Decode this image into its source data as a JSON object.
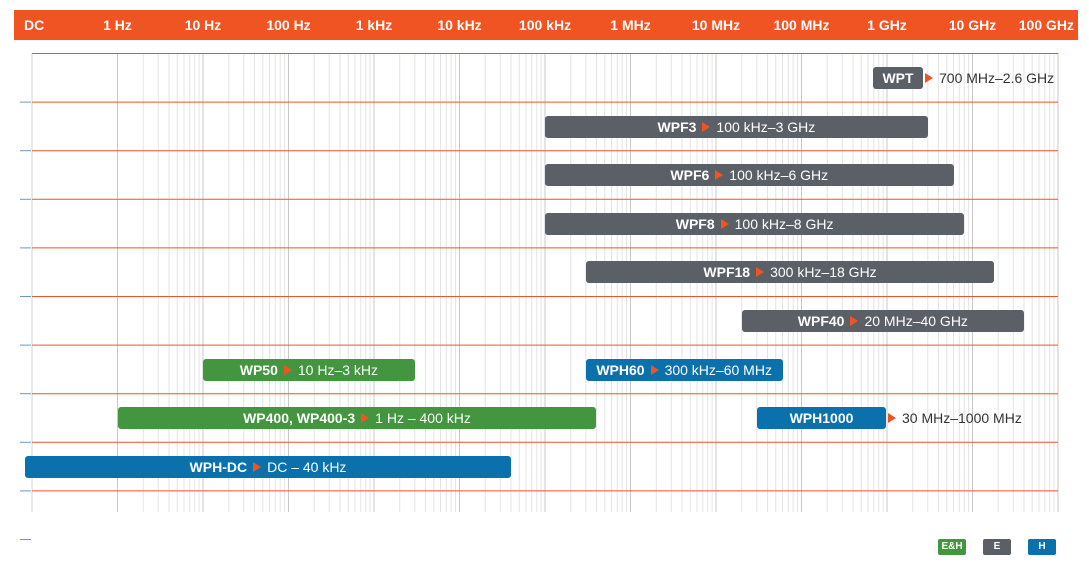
{
  "chart_data": {
    "type": "bar",
    "orientation": "horizontal",
    "x_scale": "log",
    "x_ticks": [
      "DC",
      "1 Hz",
      "10 Hz",
      "100 Hz",
      "1 kHz",
      "10 kHz",
      "100 kHz",
      "1 MHz",
      "10 MHz",
      "100 MHz",
      "1 GHz",
      "10 GHz",
      "100 GHz"
    ],
    "grid": true,
    "legend_position": "bottom-right",
    "colors": {
      "header": "#f05423",
      "accent": "#f05423",
      "gray": "#5b5f66",
      "green": "#43963f",
      "blue": "#0a71ad"
    },
    "bars": [
      {
        "name": "WPT",
        "range_label": "700 MHz–2.6 GHz",
        "x_start": "700 MHz",
        "x_end": "2.6 GHz",
        "color": "gray",
        "label_outside": true
      },
      {
        "name": "WPF3",
        "range_label": "100 kHz–3 GHz",
        "x_start": "100 kHz",
        "x_end": "3 GHz",
        "color": "gray"
      },
      {
        "name": "WPF6",
        "range_label": "100 kHz–6 GHz",
        "x_start": "100 kHz",
        "x_end": "6 GHz",
        "color": "gray"
      },
      {
        "name": "WPF8",
        "range_label": "100 kHz–8 GHz",
        "x_start": "100 kHz",
        "x_end": "8 GHz",
        "color": "gray"
      },
      {
        "name": "WPF18",
        "range_label": "300 kHz–18 GHz",
        "x_start": "300 kHz",
        "x_end": "18 GHz",
        "color": "gray"
      },
      {
        "name": "WPF40",
        "range_label": "20 MHz–40 GHz",
        "x_start": "20 MHz",
        "x_end": "40 GHz",
        "color": "gray"
      },
      {
        "name": "WP50",
        "range_label": "10 Hz–3 kHz",
        "x_start": "10 Hz",
        "x_end": "3 kHz",
        "color": "green"
      },
      {
        "name": "WPH60",
        "range_label": "300 kHz–60 MHz",
        "x_start": "300 kHz",
        "x_end": "60 MHz",
        "color": "blue"
      },
      {
        "name": "WP400, WP400-3",
        "range_label": "1 Hz – 400 kHz",
        "x_start": "1 Hz",
        "x_end": "400 kHz",
        "color": "green"
      },
      {
        "name": "WPH1000",
        "range_label": "30 MHz–1000 MHz",
        "x_start": "30 MHz",
        "x_end": "1000 MHz",
        "color": "blue",
        "label_outside": true
      },
      {
        "name": "WPH-DC",
        "range_label": "DC – 40 kHz",
        "x_start": "DC",
        "x_end": "40 kHz",
        "color": "blue"
      }
    ],
    "legend": [
      {
        "label": "E&H",
        "color": "green"
      },
      {
        "label": "E",
        "color": "gray"
      },
      {
        "label": "H",
        "color": "blue"
      }
    ]
  }
}
